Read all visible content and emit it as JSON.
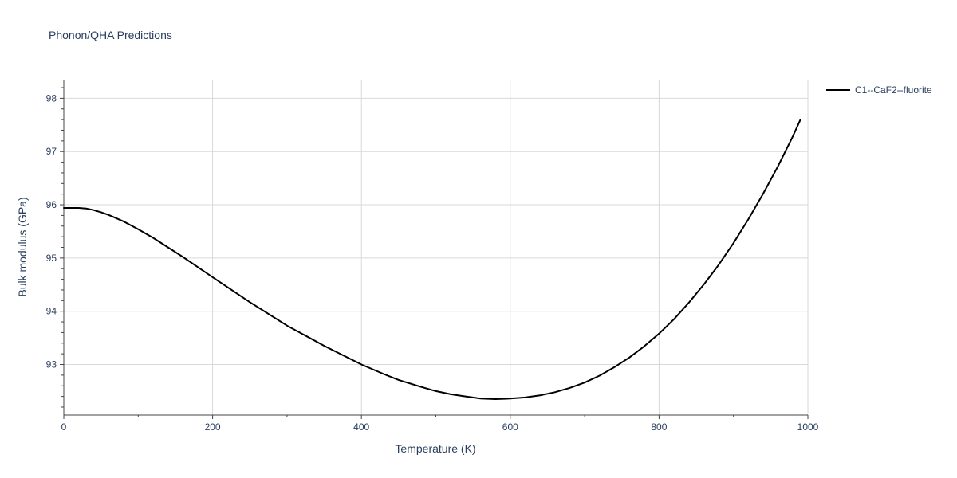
{
  "title": "Phonon/QHA Predictions",
  "colors": {
    "series": "#000000",
    "grid": "#d9d9d9",
    "axis_text": "#2a3f5f"
  },
  "chart_data": {
    "type": "line",
    "title": "Phonon/QHA Predictions",
    "xlabel": "Temperature (K)",
    "ylabel": "Bulk modulus (GPa)",
    "xlim": [
      0,
      1000
    ],
    "ylim": [
      92.05,
      98.35
    ],
    "xticks": [
      0,
      200,
      400,
      600,
      800,
      1000
    ],
    "yticks": [
      93,
      94,
      95,
      96,
      97,
      98
    ],
    "grid": true,
    "legend_position": "top-right outside",
    "series": [
      {
        "name": "C1--CaF2--fluorite",
        "color": "#000000",
        "x": [
          0,
          10,
          20,
          30,
          40,
          50,
          60,
          70,
          80,
          100,
          120,
          140,
          160,
          180,
          200,
          250,
          300,
          350,
          400,
          430,
          450,
          480,
          500,
          520,
          540,
          560,
          580,
          600,
          620,
          640,
          660,
          680,
          700,
          720,
          740,
          760,
          780,
          800,
          820,
          840,
          860,
          880,
          900,
          920,
          940,
          960,
          980,
          990
        ],
        "y": [
          95.94,
          95.94,
          95.94,
          95.93,
          95.9,
          95.86,
          95.81,
          95.75,
          95.69,
          95.54,
          95.38,
          95.2,
          95.02,
          94.83,
          94.64,
          94.17,
          93.73,
          93.35,
          93.0,
          92.82,
          92.71,
          92.58,
          92.5,
          92.44,
          92.4,
          92.36,
          92.35,
          92.36,
          92.38,
          92.42,
          92.48,
          92.56,
          92.66,
          92.79,
          92.95,
          93.13,
          93.34,
          93.58,
          93.85,
          94.16,
          94.5,
          94.87,
          95.28,
          95.73,
          96.21,
          96.73,
          97.29,
          97.6
        ]
      }
    ]
  }
}
